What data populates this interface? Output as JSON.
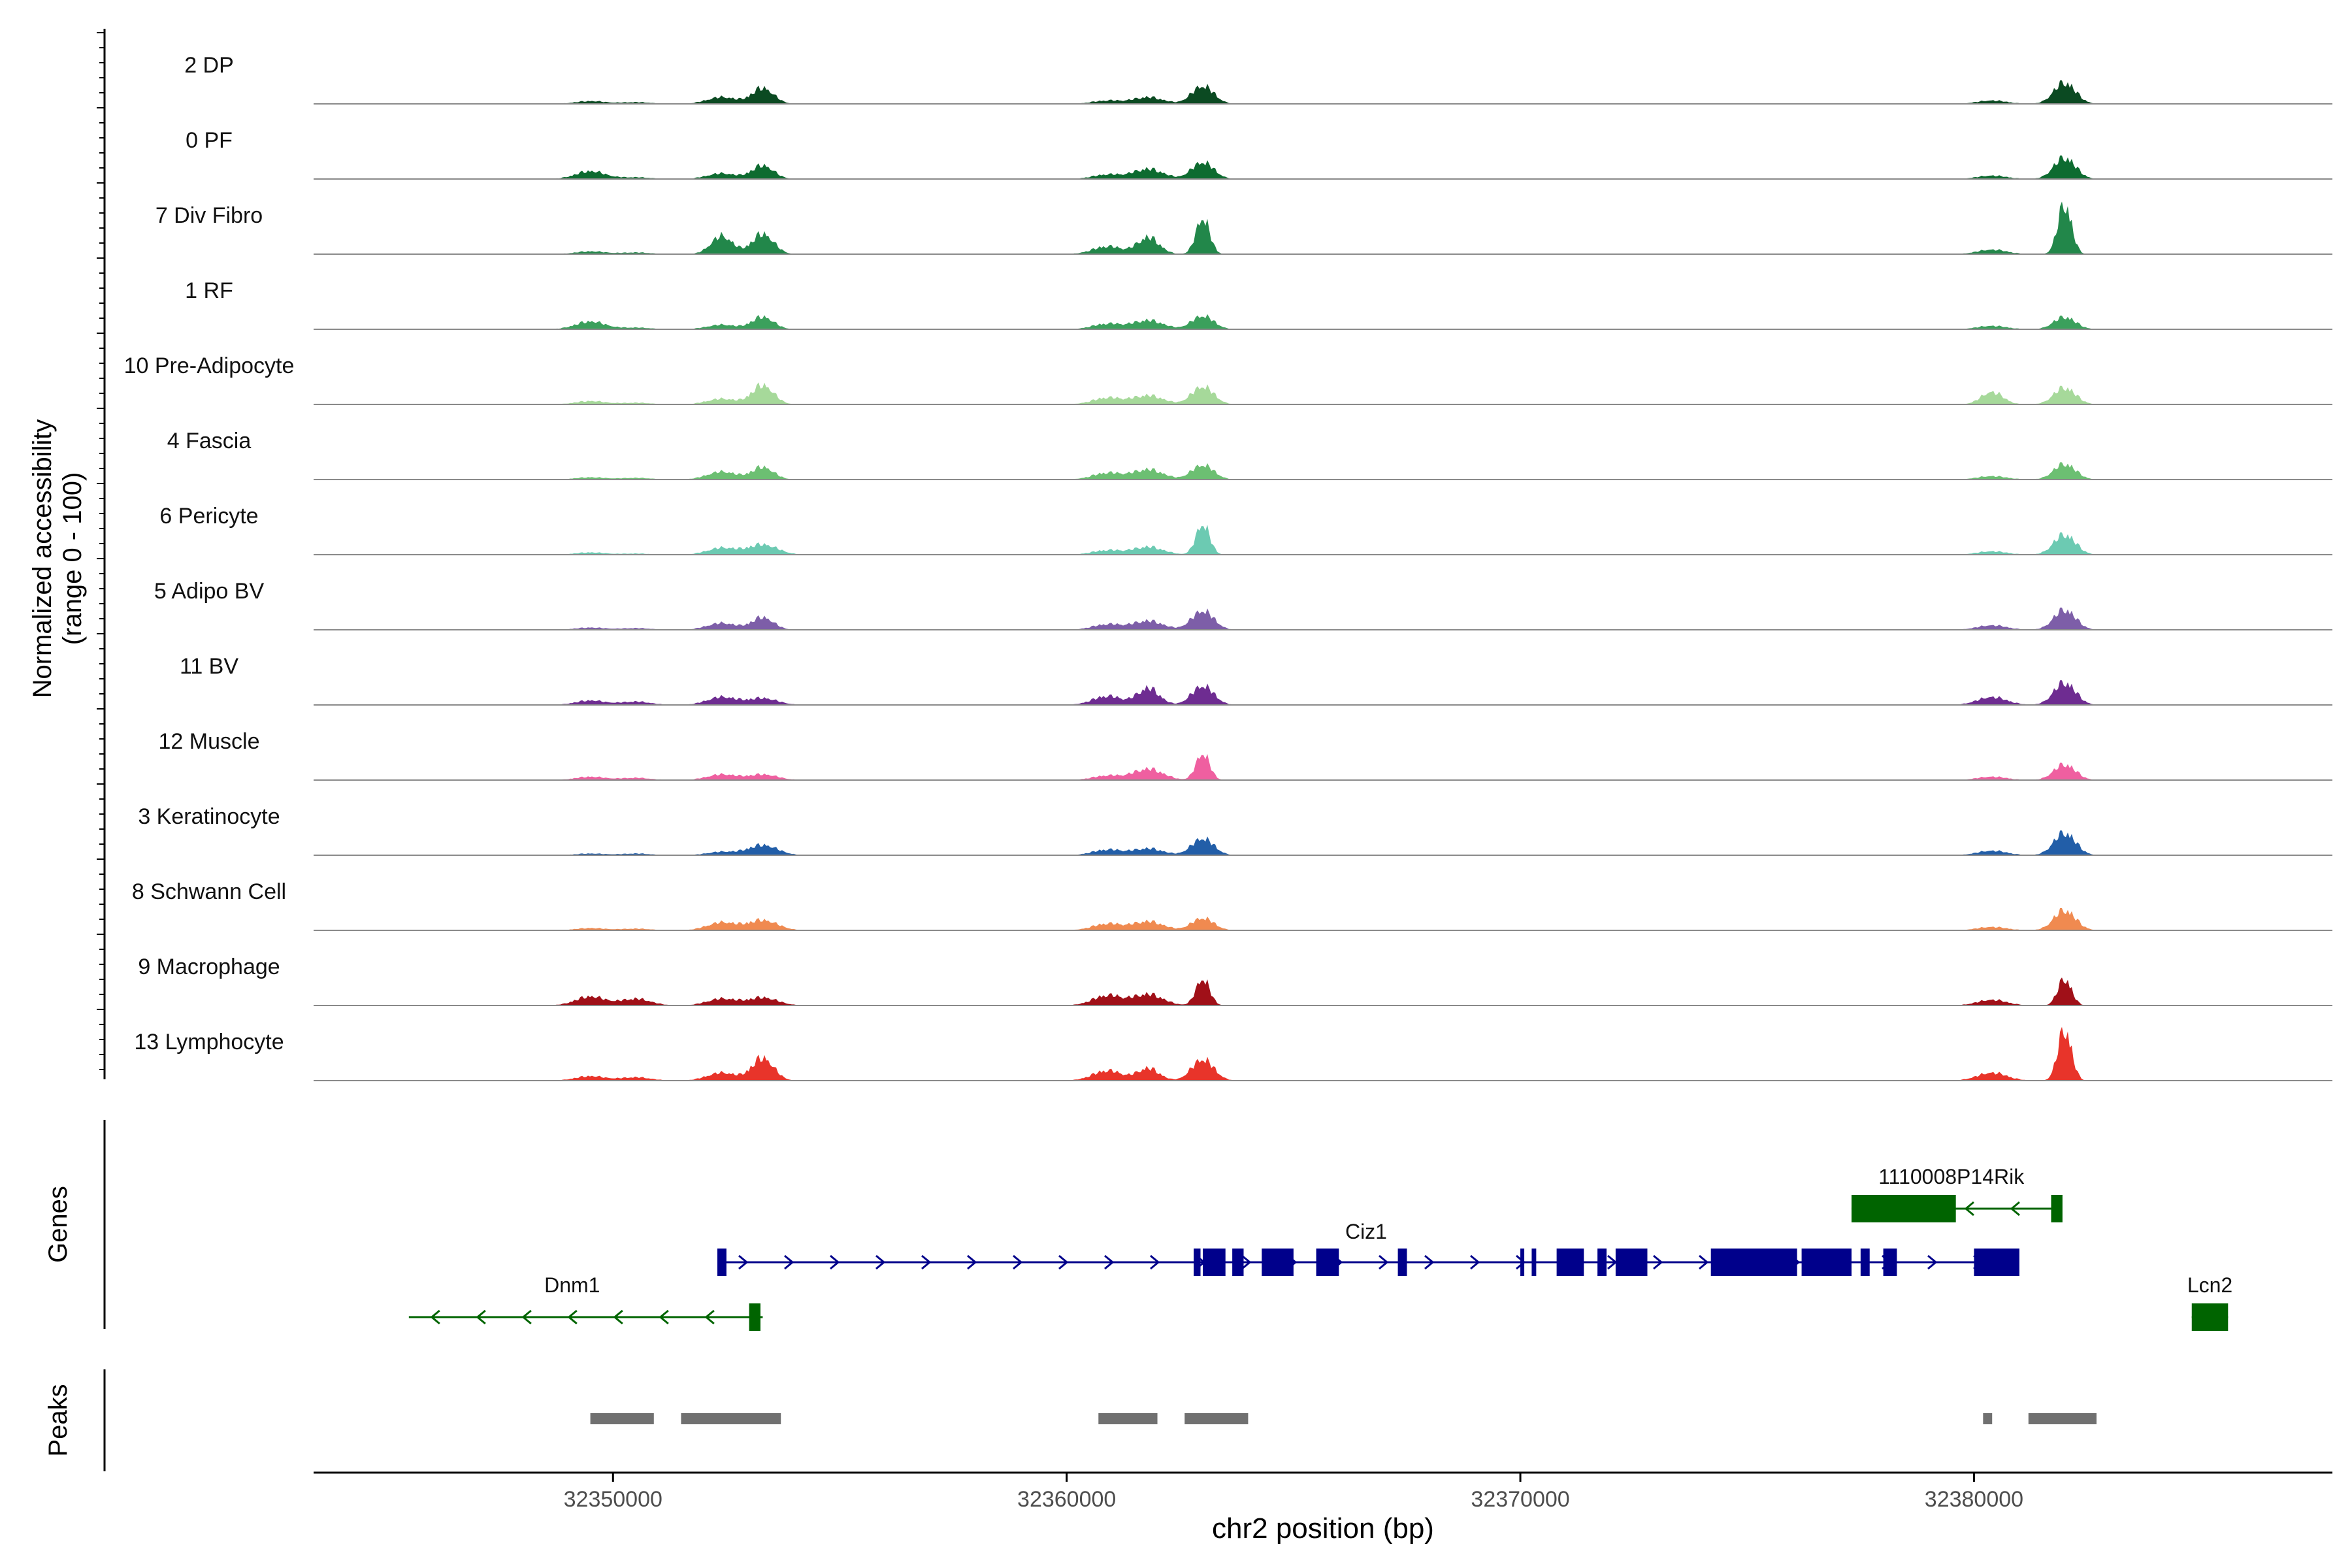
{
  "chart_data": {
    "type": "area",
    "title": "",
    "ylabel_line1": "Normalized accessibility",
    "ylabel_line2": "(range 0 - 100)",
    "xlabel": "chr2 position (bp)",
    "xlim": [
      32343400,
      32387900
    ],
    "x_ticks": [
      32350000,
      32360000,
      32370000,
      32380000
    ],
    "x_tick_labels": [
      "32350000",
      "32360000",
      "32370000",
      "32380000"
    ],
    "panel_labels": {
      "genes": "Genes",
      "peaks": "Peaks"
    },
    "ylim": [
      0,
      100
    ],
    "peak_centers": [
      32349500,
      32351500,
      32352400,
      32353300,
      32360900,
      32361800,
      32363000,
      32380400,
      32382000
    ],
    "tracks": [
      {
        "name": "2 DP",
        "color": "#0b4a22",
        "peaks": [
          [
            32349500,
            5
          ],
          [
            32350500,
            3
          ],
          [
            32352400,
            12
          ],
          [
            32353300,
            28
          ],
          [
            32360900,
            6
          ],
          [
            32361800,
            12
          ],
          [
            32363000,
            32
          ],
          [
            32380400,
            6
          ],
          [
            32382000,
            38
          ]
        ]
      },
      {
        "name": "0 PF",
        "color": "#0d6b30",
        "peaks": [
          [
            32349500,
            14
          ],
          [
            32350500,
            3
          ],
          [
            32352400,
            10
          ],
          [
            32353300,
            24
          ],
          [
            32360900,
            8
          ],
          [
            32361800,
            18
          ],
          [
            32363000,
            30
          ],
          [
            32380400,
            6
          ],
          [
            32382000,
            38
          ]
        ]
      },
      {
        "name": "7 Div Fibro",
        "color": "#22874a",
        "peaks": [
          [
            32349500,
            5
          ],
          [
            32350500,
            3
          ],
          [
            32352400,
            32
          ],
          [
            32353300,
            36
          ],
          [
            32360900,
            14
          ],
          [
            32361800,
            30
          ],
          [
            32363000,
            65
          ],
          [
            32380400,
            8
          ],
          [
            32382000,
            90
          ]
        ]
      },
      {
        "name": "1 RF",
        "color": "#3ba05c",
        "peaks": [
          [
            32349500,
            14
          ],
          [
            32350500,
            3
          ],
          [
            32352400,
            8
          ],
          [
            32353300,
            22
          ],
          [
            32360900,
            10
          ],
          [
            32361800,
            16
          ],
          [
            32363000,
            24
          ],
          [
            32380400,
            6
          ],
          [
            32382000,
            22
          ]
        ]
      },
      {
        "name": "10 Pre-Adipocyte",
        "color": "#a6d99a",
        "peaks": [
          [
            32349500,
            6
          ],
          [
            32350500,
            3
          ],
          [
            32352400,
            10
          ],
          [
            32353300,
            34
          ],
          [
            32360900,
            12
          ],
          [
            32361800,
            16
          ],
          [
            32363000,
            32
          ],
          [
            32380400,
            22
          ],
          [
            32382000,
            30
          ]
        ]
      },
      {
        "name": "4 Fascia",
        "color": "#6cbf72",
        "peaks": [
          [
            32349500,
            4
          ],
          [
            32350500,
            3
          ],
          [
            32352400,
            14
          ],
          [
            32353300,
            22
          ],
          [
            32360900,
            12
          ],
          [
            32361800,
            18
          ],
          [
            32363000,
            26
          ],
          [
            32380400,
            6
          ],
          [
            32382000,
            28
          ]
        ]
      },
      {
        "name": "6 Pericyte",
        "color": "#6ccab2",
        "peaks": [
          [
            32349500,
            4
          ],
          [
            32350500,
            2
          ],
          [
            32352400,
            12
          ],
          [
            32353300,
            18
          ],
          [
            32360900,
            8
          ],
          [
            32361800,
            14
          ],
          [
            32363000,
            55
          ],
          [
            32380400,
            6
          ],
          [
            32382000,
            36
          ]
        ]
      },
      {
        "name": "5 Adipo BV",
        "color": "#7d5ea8",
        "peaks": [
          [
            32349500,
            4
          ],
          [
            32350500,
            3
          ],
          [
            32352400,
            12
          ],
          [
            32353300,
            22
          ],
          [
            32360900,
            10
          ],
          [
            32361800,
            16
          ],
          [
            32363000,
            34
          ],
          [
            32380400,
            8
          ],
          [
            32382000,
            36
          ]
        ]
      },
      {
        "name": "11 BV",
        "color": "#6e2c91",
        "peaks": [
          [
            32349500,
            8
          ],
          [
            32350500,
            6
          ],
          [
            32352400,
            14
          ],
          [
            32353300,
            12
          ],
          [
            32360900,
            16
          ],
          [
            32361800,
            30
          ],
          [
            32363000,
            34
          ],
          [
            32380400,
            14
          ],
          [
            32382000,
            40
          ]
        ]
      },
      {
        "name": "12 Muscle",
        "color": "#ef5fa0",
        "peaks": [
          [
            32349500,
            6
          ],
          [
            32350500,
            4
          ],
          [
            32352400,
            10
          ],
          [
            32353300,
            10
          ],
          [
            32360900,
            8
          ],
          [
            32361800,
            20
          ],
          [
            32363000,
            48
          ],
          [
            32380400,
            6
          ],
          [
            32382000,
            28
          ]
        ]
      },
      {
        "name": "3 Keratinocyte",
        "color": "#225ea8",
        "peaks": [
          [
            32349500,
            3
          ],
          [
            32350500,
            3
          ],
          [
            32352400,
            6
          ],
          [
            32353300,
            18
          ],
          [
            32360900,
            10
          ],
          [
            32361800,
            12
          ],
          [
            32363000,
            30
          ],
          [
            32380400,
            8
          ],
          [
            32382000,
            40
          ]
        ]
      },
      {
        "name": "8 Schwann Cell",
        "color": "#f08a50",
        "peaks": [
          [
            32349500,
            4
          ],
          [
            32350500,
            3
          ],
          [
            32352400,
            14
          ],
          [
            32353300,
            18
          ],
          [
            32360900,
            12
          ],
          [
            32361800,
            16
          ],
          [
            32363000,
            22
          ],
          [
            32380400,
            6
          ],
          [
            32382000,
            36
          ]
        ]
      },
      {
        "name": "9 Macrophage",
        "color": "#a01018",
        "peaks": [
          [
            32349500,
            16
          ],
          [
            32350500,
            12
          ],
          [
            32352400,
            12
          ],
          [
            32353300,
            14
          ],
          [
            32360900,
            18
          ],
          [
            32361800,
            20
          ],
          [
            32363000,
            48
          ],
          [
            32380400,
            10
          ],
          [
            32382000,
            48
          ]
        ]
      },
      {
        "name": "13 Lymphocyte",
        "color": "#e8342a",
        "peaks": [
          [
            32349500,
            8
          ],
          [
            32350500,
            6
          ],
          [
            32352400,
            14
          ],
          [
            32353300,
            40
          ],
          [
            32360900,
            18
          ],
          [
            32361800,
            22
          ],
          [
            32363000,
            38
          ],
          [
            32380400,
            14
          ],
          [
            32382000,
            92
          ]
        ]
      }
    ],
    "genes": [
      {
        "name": "1110008P14Rik",
        "strand": "-",
        "start": 32377300,
        "end": 32381900,
        "row": 0,
        "color": "#006400",
        "exons": [
          [
            32377300,
            32379600
          ],
          [
            32381700,
            32381950
          ]
        ]
      },
      {
        "name": "Ciz1",
        "strand": "+",
        "start": 32352300,
        "end": 32380900,
        "row": 1,
        "color": "#00008b",
        "exons": [
          [
            32352300,
            32352500
          ],
          [
            32362800,
            32362950
          ],
          [
            32363000,
            32363500
          ],
          [
            32363650,
            32363900
          ],
          [
            32364300,
            32365000
          ],
          [
            32365500,
            32366000
          ],
          [
            32367300,
            32367500
          ],
          [
            32370000,
            32370080
          ],
          [
            32370250,
            32370350
          ],
          [
            32370800,
            32371400
          ],
          [
            32371700,
            32371900
          ],
          [
            32372100,
            32372800
          ],
          [
            32374200,
            32376100
          ],
          [
            32376200,
            32377300
          ],
          [
            32377500,
            32377700
          ],
          [
            32378000,
            32378300
          ],
          [
            32380000,
            32381000
          ]
        ]
      },
      {
        "name": "Dnm1",
        "strand": "-",
        "start": 32345500,
        "end": 32353300,
        "row": 2,
        "color": "#006400",
        "exons": [
          [
            32353000,
            32353250
          ]
        ]
      },
      {
        "name": "Lcn2",
        "strand": "+",
        "start": 32384800,
        "end": 32385600,
        "row": 2,
        "color": "#006400",
        "exons": [
          [
            32384800,
            32385600
          ]
        ]
      }
    ],
    "peak_regions": [
      [
        32349500,
        32350900
      ],
      [
        32351500,
        32353700
      ],
      [
        32360700,
        32362000
      ],
      [
        32362600,
        32364000
      ],
      [
        32380200,
        32380400
      ],
      [
        32381200,
        32382700
      ]
    ],
    "peak_color": "#707070"
  }
}
